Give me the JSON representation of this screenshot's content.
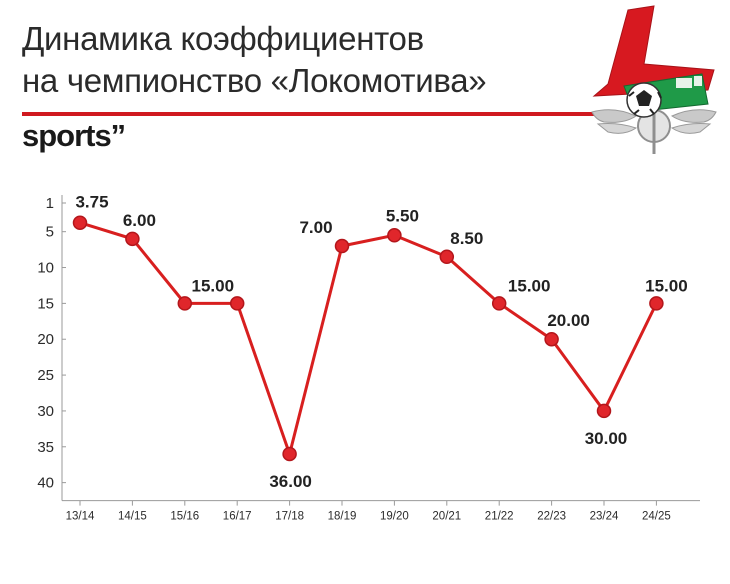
{
  "header": {
    "title_line1": "Динамика коэффициентов",
    "title_line2": "на чемпионство «Локомотива»",
    "brand": "sports",
    "brand_mark": "’’"
  },
  "logo": {
    "icon": "lokomotiv-crest-icon"
  },
  "colors": {
    "accent": "#d0191f",
    "line": "#d81f1f",
    "grid": "#bfbfbf",
    "text": "#2b2b2b"
  },
  "chart_data": {
    "type": "line",
    "categories": [
      "13/14",
      "14/15",
      "15/16",
      "16/17",
      "17/18",
      "18/19",
      "19/20",
      "20/21",
      "21/22",
      "22/23",
      "23/24",
      "24/25"
    ],
    "series": [
      {
        "values": [
          3.75,
          6.0,
          15.0,
          15.0,
          36.0,
          7.0,
          5.5,
          8.5,
          15.0,
          20.0,
          30.0,
          15.0
        ]
      }
    ],
    "data_labels": [
      "3.75",
      "6.00",
      "15.00",
      "",
      "36.00",
      "7.00",
      "5.50",
      "8.50",
      "15.00",
      "20.00",
      "30.00",
      "15.00"
    ],
    "y_ticks": [
      "1",
      "5",
      "10",
      "15",
      "20",
      "25",
      "30",
      "35",
      "40"
    ],
    "ylim": [
      1,
      40
    ],
    "y_inverted": true,
    "grid": false
  }
}
